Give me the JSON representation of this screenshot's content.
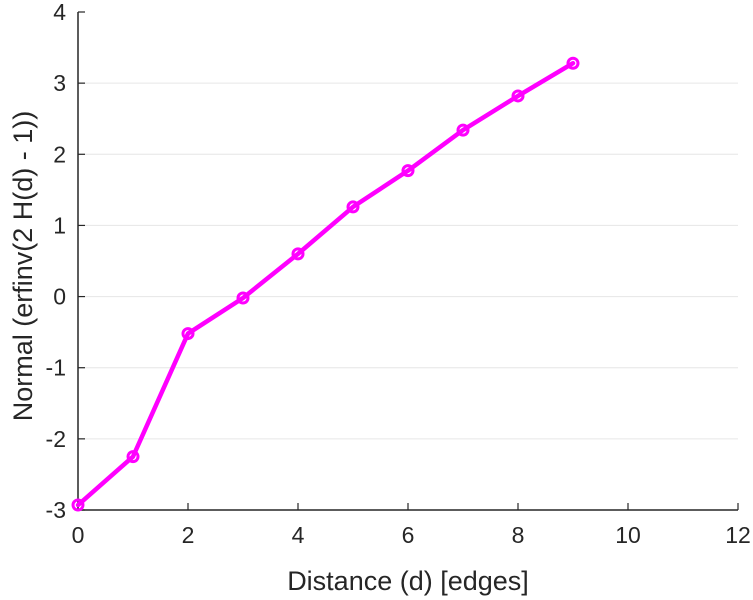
{
  "chart_data": {
    "type": "line",
    "title": "",
    "xlabel": "Distance (d) [edges]",
    "ylabel": "Normal (erfinv(2 H(d) - 1))",
    "xlim": [
      0,
      12
    ],
    "ylim": [
      -3,
      4
    ],
    "xticks": [
      0,
      2,
      4,
      6,
      8,
      10,
      12
    ],
    "yticks": [
      -3,
      -2,
      -1,
      0,
      1,
      2,
      3,
      4
    ],
    "grid": "horizontal",
    "legend": "none",
    "series": [
      {
        "color": "#ff00ff",
        "marker": "circle",
        "x": [
          0,
          1,
          2,
          3,
          4,
          5,
          6,
          7,
          8,
          9
        ],
        "y": [
          -2.93,
          -2.25,
          -0.52,
          -0.02,
          0.6,
          1.26,
          1.77,
          2.34,
          2.82,
          3.28
        ]
      }
    ]
  }
}
